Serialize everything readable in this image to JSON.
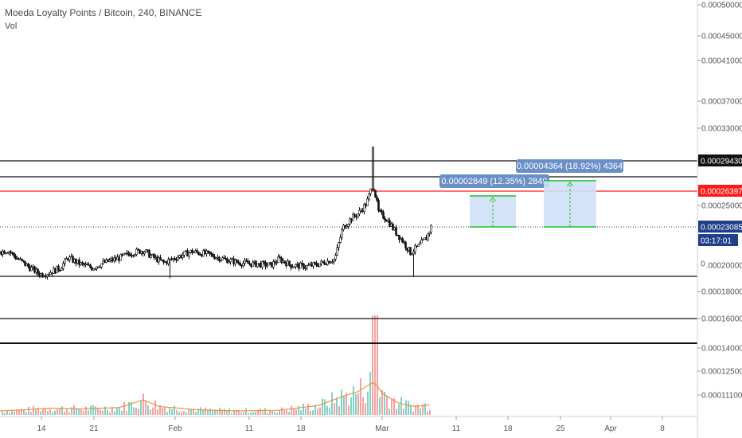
{
  "header": {
    "title": "Moeda Loyalty Points / Bitcoin, 240, BINANCE",
    "volume_label": "Vol"
  },
  "colors": {
    "candle": "#111111",
    "hline": "#111111",
    "red_line": "#ff1a1a",
    "price_line": "#1f3f8a",
    "vol_up": "#7fd3c6",
    "vol_down": "#f4a3a3",
    "vol_ma": "#f28a3a",
    "measure_fill": "#cfe0f7",
    "measure_line": "#22c02a",
    "measure_label": "#6b8fc7"
  },
  "y_axis_ticks": [
    "0.00050000",
    "0.00045000",
    "0.00041000",
    "0.00037000",
    "0.00033000",
    "0.00025000",
    "0.00020000",
    "0.00018000",
    "0.00016000",
    "0.00014000",
    "0.00012500",
    "0.00011100"
  ],
  "x_axis_ticks": [
    "14",
    "21",
    "Feb",
    "11",
    "18",
    "Mar",
    "11",
    "18",
    "25",
    "Apr",
    "8"
  ],
  "price_tags": {
    "upper": {
      "text": "0.00029430",
      "bg": "#111111",
      "fg": "#ffffff"
    },
    "red": {
      "text": "0.00026397",
      "bg": "#ff1a1a",
      "fg": "#ffffff"
    },
    "last": {
      "text": "0.00023085",
      "bg": "#1f3f8a",
      "fg": "#ffffff"
    },
    "timer": {
      "text": "03:17:01",
      "bg": "#1f3f8a",
      "fg": "#ffffff"
    },
    "extra": {
      "text": "0",
      "bg": "#ffffff",
      "fg": "#555555"
    }
  },
  "measurements": [
    {
      "text": "0.00002849 (12.35%) 2849"
    },
    {
      "text": "0.00004364 (18.92%) 4364"
    }
  ],
  "chart_data": {
    "type": "candlestick",
    "title": "Moeda Loyalty Points / Bitcoin, 240, BINANCE",
    "interval": "240",
    "exchange": "BINANCE",
    "last_price": 0.00023085,
    "horizontal_levels": [
      0.0002943,
      0.0002806,
      0.00026397,
      0.0001908,
      0.0001612,
      0.0001405
    ],
    "price_path": [
      [
        0,
        0.000211
      ],
      [
        10,
        0.000212
      ],
      [
        20,
        0.000206
      ],
      [
        35,
        0.000199
      ],
      [
        50,
        0.000193
      ],
      [
        60,
        0.000194
      ],
      [
        75,
        0.000198
      ],
      [
        85,
        0.000206
      ],
      [
        100,
        0.000201
      ],
      [
        115,
        0.000198
      ],
      [
        130,
        0.000202
      ],
      [
        150,
        0.000206
      ],
      [
        165,
        0.00021
      ],
      [
        180,
        0.000212
      ],
      [
        190,
        0.000207
      ],
      [
        205,
        0.000202
      ],
      [
        220,
        0.000206
      ],
      [
        240,
        0.000211
      ],
      [
        260,
        0.000209
      ],
      [
        280,
        0.000205
      ],
      [
        300,
        0.000202
      ],
      [
        320,
        0.000201
      ],
      [
        340,
        0.0002
      ],
      [
        350,
        0.000205
      ],
      [
        365,
        0.0002
      ],
      [
        385,
        0.000199
      ],
      [
        400,
        0.000201
      ],
      [
        420,
        0.000205
      ],
      [
        430,
        0.00023
      ],
      [
        440,
        0.000238
      ],
      [
        450,
        0.000243
      ],
      [
        460,
        0.000252
      ],
      [
        468,
        0.000272
      ],
      [
        475,
        0.000244
      ],
      [
        485,
        0.000238
      ],
      [
        495,
        0.000228
      ],
      [
        505,
        0.00022
      ],
      [
        515,
        0.00021
      ],
      [
        525,
        0.000215
      ],
      [
        535,
        0.000222
      ],
      [
        541,
        0.000231
      ]
    ],
    "volume_path": [
      [
        0,
        0.12
      ],
      [
        30,
        0.15
      ],
      [
        60,
        0.2
      ],
      [
        100,
        0.18
      ],
      [
        150,
        0.22
      ],
      [
        180,
        0.45
      ],
      [
        200,
        0.25
      ],
      [
        250,
        0.15
      ],
      [
        300,
        0.12
      ],
      [
        350,
        0.14
      ],
      [
        400,
        0.28
      ],
      [
        430,
        0.55
      ],
      [
        450,
        0.7
      ],
      [
        470,
        1.0
      ],
      [
        480,
        0.65
      ],
      [
        500,
        0.35
      ],
      [
        520,
        0.25
      ],
      [
        541,
        0.3
      ]
    ],
    "measure_ranges": [
      {
        "label": "0.00002849 (12.35%) 2849",
        "from": 0.00023085,
        "to": 0.00025934
      },
      {
        "label": "0.00004364 (18.92%) 4364",
        "from": 0.00023085,
        "to": 0.00027449
      }
    ]
  }
}
